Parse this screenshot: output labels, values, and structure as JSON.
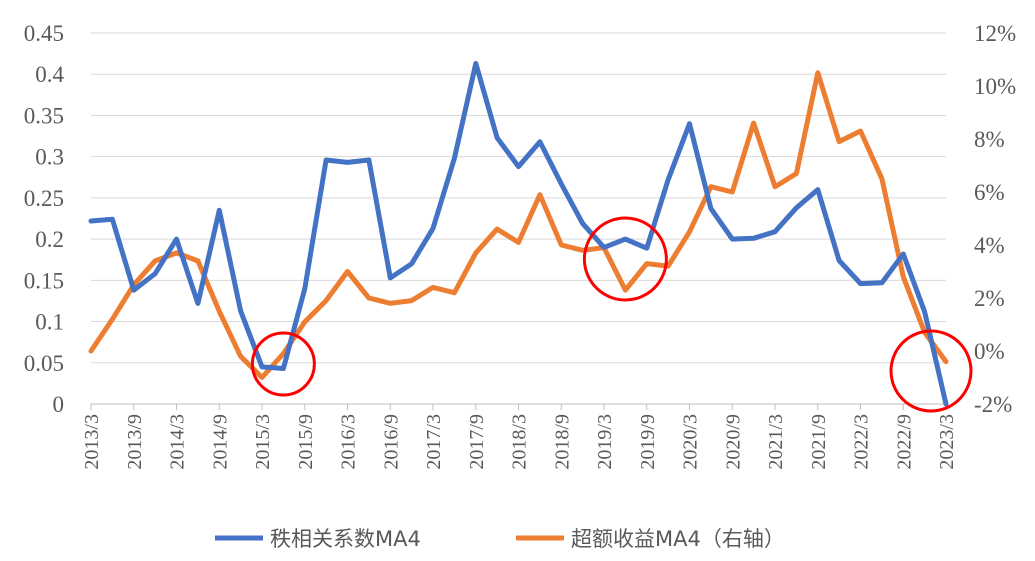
{
  "chart_data": {
    "type": "line",
    "x": [
      "2013/3",
      "2013/6",
      "2013/9",
      "2013/12",
      "2014/3",
      "2014/6",
      "2014/9",
      "2014/12",
      "2015/3",
      "2015/6",
      "2015/9",
      "2015/12",
      "2016/3",
      "2016/6",
      "2016/9",
      "2016/12",
      "2017/3",
      "2017/6",
      "2017/9",
      "2017/12",
      "2018/3",
      "2018/6",
      "2018/9",
      "2018/12",
      "2019/3",
      "2019/6",
      "2019/9",
      "2019/12",
      "2020/3",
      "2020/6",
      "2020/9",
      "2020/12",
      "2021/3",
      "2021/6",
      "2021/9",
      "2021/12",
      "2022/3",
      "2022/6",
      "2022/9",
      "2022/12",
      "2023/3"
    ],
    "xtick_labels": [
      "2013/3",
      "2013/9",
      "2014/3",
      "2014/9",
      "2015/3",
      "2015/9",
      "2016/3",
      "2016/9",
      "2017/3",
      "2017/9",
      "2018/3",
      "2018/9",
      "2019/3",
      "2019/9",
      "2020/3",
      "2020/9",
      "2021/3",
      "2021/9",
      "2022/3",
      "2022/9",
      "2023/3"
    ],
    "y_left": {
      "ticks": [
        "0",
        "0.05",
        "0.1",
        "0.15",
        "0.2",
        "0.25",
        "0.3",
        "0.35",
        "0.4",
        "0.45"
      ],
      "range": [
        0,
        0.45
      ]
    },
    "y_right": {
      "ticks": [
        "-2%",
        "0%",
        "2%",
        "4%",
        "6%",
        "8%",
        "10%",
        "12%"
      ],
      "range": [
        -2,
        12
      ],
      "unit": "%"
    },
    "series": [
      {
        "name": "秩相关系数MA4",
        "axis": "left",
        "color": "#4472C4",
        "values": [
          0.222,
          0.224,
          0.138,
          0.158,
          0.2,
          0.122,
          0.235,
          0.113,
          0.045,
          0.043,
          0.14,
          0.296,
          0.293,
          0.296,
          0.153,
          0.17,
          0.213,
          0.298,
          0.413,
          0.323,
          0.288,
          0.318,
          0.267,
          0.219,
          0.19,
          0.2,
          0.189,
          0.272,
          0.34,
          0.237,
          0.2,
          0.201,
          0.209,
          0.238,
          0.26,
          0.174,
          0.146,
          0.147,
          0.182,
          0.112,
          0.0
        ]
      },
      {
        "name": "超额收益MA4（右轴）",
        "axis": "right",
        "color": "#ED7D31",
        "values": [
          0.0,
          1.2,
          2.5,
          3.4,
          3.7,
          3.4,
          1.5,
          -0.2,
          -1.0,
          -0.1,
          1.1,
          1.9,
          3.0,
          2.0,
          1.8,
          1.9,
          2.4,
          2.2,
          3.7,
          4.6,
          4.1,
          5.9,
          4.0,
          3.8,
          3.9,
          2.3,
          3.3,
          3.2,
          4.5,
          6.2,
          6.0,
          8.6,
          6.2,
          6.7,
          10.5,
          7.9,
          8.3,
          6.5,
          2.8,
          0.7,
          -0.4
        ]
      }
    ],
    "highlights": [
      {
        "type": "circle",
        "color": "#FF0000",
        "near_x": "2015/6"
      },
      {
        "type": "circle",
        "color": "#FF0000",
        "near_x": "2019/6"
      },
      {
        "type": "circle",
        "color": "#FF0000",
        "near_x": "2023/3"
      }
    ],
    "grid": "horizontal",
    "legend": "bottom"
  }
}
